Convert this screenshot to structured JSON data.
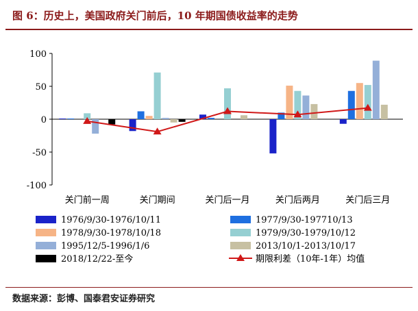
{
  "page": {
    "title": "图 6：历史上，美国政府关门前后，10 年期国债收益率的走势",
    "source": "数据来源：彭博、国泰君安证券研究"
  },
  "chart_data": {
    "type": "bar",
    "categories": [
      "关门前一周",
      "关门期间",
      "关门后一月",
      "关门后两月",
      "关门后三月"
    ],
    "ylim": [
      -100,
      100
    ],
    "yticks": [
      100,
      50,
      0,
      -50,
      -100
    ],
    "ytick_labels": [
      "100",
      "50",
      "0",
      "-50",
      "-100"
    ],
    "series": [
      {
        "name": "1976/9/30-1976/10/11",
        "color": "#1a23c9",
        "values": [
          1,
          -18,
          7,
          -52,
          -7
        ]
      },
      {
        "name": "1977/9/30-197710/13",
        "color": "#1e6fe0",
        "values": [
          1,
          12,
          2,
          10,
          43
        ]
      },
      {
        "name": "1978/9/30-1978/10/18",
        "color": "#f6b486",
        "values": [
          0,
          5,
          0,
          51,
          55
        ]
      },
      {
        "name": "1979/9/30-1979/10/12",
        "color": "#95cfd2",
        "values": [
          9,
          71,
          47,
          43,
          52
        ]
      },
      {
        "name": "1995/12/5-1996/1/6",
        "color": "#94afd8",
        "values": [
          -22,
          2,
          0,
          36,
          89
        ]
      },
      {
        "name": "2013/10/1-2013/10/17",
        "color": "#c7c0a2",
        "values": [
          0,
          -5,
          6,
          23,
          22
        ]
      },
      {
        "name": "2018/12/22-至今",
        "color": "#000000",
        "values": [
          -8,
          -4,
          0,
          0,
          0
        ]
      }
    ],
    "line": {
      "name": "期限利差（10年-1年）均值",
      "color": "#d01818",
      "values": [
        -3,
        -19,
        12,
        7,
        17
      ]
    },
    "legend_position": "bottom"
  }
}
